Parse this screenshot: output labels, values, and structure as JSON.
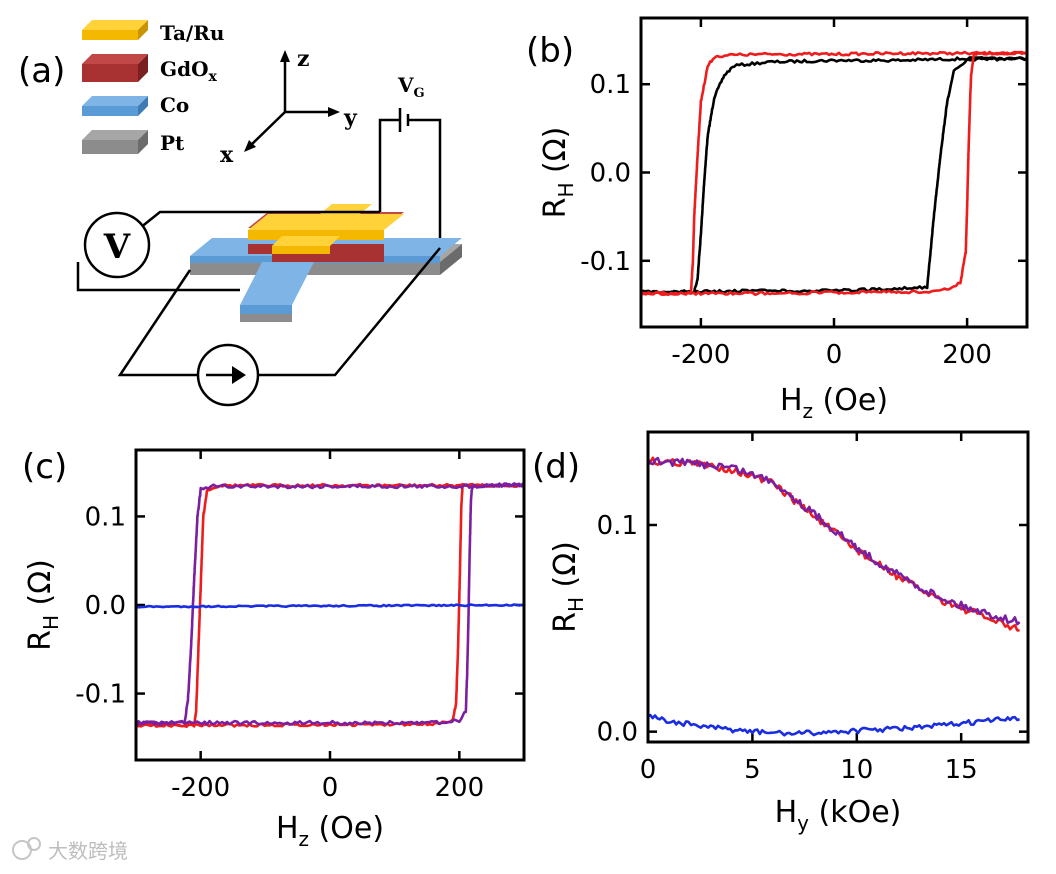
{
  "panel_a": {
    "label": "(a)",
    "legend": [
      {
        "name": "Ta/Ru",
        "color": "#f5b800"
      },
      {
        "name": "GdO",
        "sub": "x",
        "color": "#a83232"
      },
      {
        "name": "Co",
        "color": "#5b9bd5"
      },
      {
        "name": "Pt",
        "color": "#8c8c8c"
      }
    ],
    "axes": {
      "z": "z",
      "y": "y",
      "x": "x"
    },
    "gate_label": "V",
    "gate_sub": "G",
    "voltmeter": "V"
  },
  "watermark": "大数跨境",
  "chart_data": [
    {
      "id": "b",
      "panel_label": "(b)",
      "type": "line",
      "xlabel": "H",
      "xlabel_sub": "z",
      "xlabel_unit": "(Oe)",
      "ylabel": "R",
      "ylabel_sub": "H",
      "ylabel_unit": "(Ω)",
      "xlim": [
        -290,
        290
      ],
      "ylim": [
        -0.175,
        0.175
      ],
      "xticks": [
        -200,
        0,
        200
      ],
      "xtick_labels": [
        "-200",
        "0",
        "200"
      ],
      "yticks": [
        -0.1,
        0.0,
        0.1
      ],
      "ytick_labels": [
        "-0.1",
        "0.0",
        "0.1"
      ],
      "series": [
        {
          "name": "black loop",
          "color": "#000000",
          "noise": 0.0015,
          "x": [
            -290,
            -210,
            -205,
            -200,
            -195,
            -190,
            -180,
            -165,
            -150,
            -100,
            0,
            100,
            200,
            290,
            290,
            200,
            180,
            170,
            160,
            150,
            140,
            0,
            -100,
            -210,
            -290
          ],
          "y": [
            -0.135,
            -0.135,
            -0.12,
            -0.07,
            -0.01,
            0.04,
            0.085,
            0.11,
            0.121,
            0.125,
            0.127,
            0.127,
            0.129,
            0.129,
            0.129,
            0.128,
            0.115,
            0.08,
            0.02,
            -0.05,
            -0.13,
            -0.134,
            -0.134,
            -0.135,
            -0.135
          ]
        },
        {
          "name": "red loop",
          "color": "#ee1c1c",
          "noise": 0.0015,
          "x": [
            -290,
            -215,
            -212,
            -210,
            -205,
            -200,
            -190,
            -180,
            -160,
            -100,
            0,
            100,
            200,
            290,
            290,
            210,
            206,
            204,
            202,
            200,
            198,
            190,
            170,
            150,
            0,
            -100,
            -215,
            -290
          ],
          "y": [
            -0.137,
            -0.137,
            -0.1,
            -0.05,
            0.02,
            0.08,
            0.12,
            0.131,
            0.133,
            0.134,
            0.134,
            0.135,
            0.135,
            0.135,
            0.135,
            0.135,
            0.11,
            0.07,
            0.02,
            -0.04,
            -0.09,
            -0.125,
            -0.132,
            -0.135,
            -0.136,
            -0.137,
            -0.137,
            -0.137
          ]
        }
      ]
    },
    {
      "id": "c",
      "panel_label": "(c)",
      "type": "line",
      "xlabel": "H",
      "xlabel_sub": "z",
      "xlabel_unit": "(Oe)",
      "ylabel": "R",
      "ylabel_sub": "H",
      "ylabel_unit": "(Ω)",
      "xlim": [
        -300,
        300
      ],
      "ylim": [
        -0.175,
        0.175
      ],
      "xticks": [
        -200,
        0,
        200
      ],
      "xtick_labels": [
        "-200",
        "0",
        "200"
      ],
      "yticks": [
        -0.1,
        0.0,
        0.1
      ],
      "ytick_labels": [
        "-0.1",
        "0.0",
        "0.1"
      ],
      "series": [
        {
          "name": "red loop",
          "color": "#ee1c1c",
          "noise": 0.0015,
          "x": [
            -300,
            -210,
            -207,
            -204,
            -200,
            -196,
            -190,
            -170,
            -100,
            0,
            100,
            200,
            300,
            300,
            205,
            203,
            201,
            198,
            195,
            190,
            170,
            100,
            0,
            -210,
            -300
          ],
          "y": [
            -0.136,
            -0.136,
            -0.12,
            -0.06,
            0.02,
            0.1,
            0.13,
            0.135,
            0.135,
            0.135,
            0.135,
            0.135,
            0.135,
            0.135,
            0.135,
            0.11,
            0.04,
            -0.05,
            -0.11,
            -0.13,
            -0.134,
            -0.135,
            -0.135,
            -0.136,
            -0.136
          ]
        },
        {
          "name": "purple loop",
          "color": "#7b1fa2",
          "noise": 0.002,
          "x": [
            -300,
            -225,
            -220,
            -215,
            -210,
            -205,
            -200,
            -180,
            -100,
            0,
            100,
            200,
            300,
            300,
            220,
            218,
            216,
            214,
            212,
            210,
            200,
            180,
            100,
            0,
            -225,
            -300
          ],
          "y": [
            -0.133,
            -0.133,
            -0.11,
            -0.05,
            0.03,
            0.1,
            0.13,
            0.134,
            0.134,
            0.134,
            0.134,
            0.134,
            0.136,
            0.136,
            0.134,
            0.12,
            0.06,
            -0.02,
            -0.08,
            -0.12,
            -0.13,
            -0.133,
            -0.133,
            -0.133,
            -0.133,
            -0.133
          ]
        },
        {
          "name": "blue (no loop)",
          "color": "#1a2de0",
          "noise": 0.0008,
          "x": [
            -300,
            300
          ],
          "y": [
            -0.002,
            0.0
          ]
        }
      ]
    },
    {
      "id": "d",
      "panel_label": "(d)",
      "type": "line",
      "xlabel": "H",
      "xlabel_sub": "y",
      "xlabel_unit": "(kOe)",
      "ylabel": "R",
      "ylabel_sub": "H",
      "ylabel_unit": "(Ω)",
      "xlim": [
        0,
        18.2
      ],
      "ylim": [
        -0.005,
        0.145
      ],
      "xticks": [
        0,
        5,
        10,
        15
      ],
      "xtick_labels": [
        "0",
        "5",
        "10",
        "15"
      ],
      "yticks": [
        0.0,
        0.1
      ],
      "ytick_labels": [
        "0.0",
        "0.1"
      ],
      "series": [
        {
          "name": "red",
          "color": "#ee1c1c",
          "noise": 0.0018,
          "x": [
            0,
            2,
            4,
            6,
            7,
            8,
            9,
            10,
            11,
            12,
            13,
            14,
            15,
            16,
            17,
            17.8
          ],
          "y": [
            0.131,
            0.13,
            0.127,
            0.12,
            0.112,
            0.104,
            0.096,
            0.088,
            0.081,
            0.075,
            0.069,
            0.064,
            0.06,
            0.056,
            0.052,
            0.049
          ]
        },
        {
          "name": "purple",
          "color": "#7b1fa2",
          "noise": 0.0018,
          "x": [
            0,
            2,
            4,
            6,
            7,
            8,
            9,
            10,
            11,
            12,
            13,
            14,
            15,
            16,
            17,
            17.8
          ],
          "y": [
            0.131,
            0.13,
            0.128,
            0.121,
            0.113,
            0.105,
            0.097,
            0.089,
            0.082,
            0.076,
            0.07,
            0.065,
            0.061,
            0.058,
            0.055,
            0.053
          ]
        },
        {
          "name": "blue",
          "color": "#1a2de0",
          "noise": 0.0012,
          "x": [
            0,
            1,
            3,
            5,
            7,
            9,
            11,
            13,
            15,
            17,
            17.8
          ],
          "y": [
            0.008,
            0.005,
            0.002,
            0.0,
            -0.001,
            0.0,
            0.001,
            0.002,
            0.004,
            0.006,
            0.006
          ]
        }
      ]
    }
  ]
}
